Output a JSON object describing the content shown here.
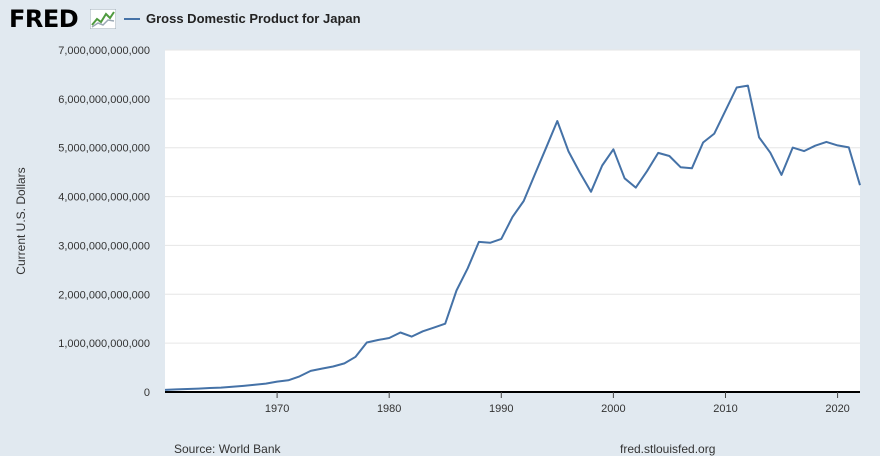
{
  "header": {
    "logo_text": "FRED",
    "logo_icon": "line-graph-icon"
  },
  "legend": {
    "label": "Gross Domestic Product for Japan",
    "color": "#4572a7"
  },
  "footer": {
    "source": "Source: World Bank",
    "site": "fred.stlouisfed.org"
  },
  "colors": {
    "background": "#e1e9f0",
    "plot_background": "#ffffff",
    "series": "#4572a7",
    "grid": "#e6e6e6",
    "axis_text": "#333333"
  },
  "chart_data": {
    "type": "line",
    "title": "Gross Domestic Product for Japan",
    "xlabel": "",
    "ylabel": "Current U.S. Dollars",
    "xlim": [
      1960,
      2022
    ],
    "ylim": [
      0,
      7000000000000
    ],
    "x_ticks": [
      1970,
      1980,
      1990,
      2000,
      2010,
      2020
    ],
    "y_ticks": [
      0,
      1000000000000,
      2000000000000,
      3000000000000,
      4000000000000,
      5000000000000,
      6000000000000,
      7000000000000
    ],
    "y_tick_labels": [
      "0",
      "1,000,000,000,000",
      "2,000,000,000,000",
      "3,000,000,000,000",
      "4,000,000,000,000",
      "5,000,000,000,000",
      "6,000,000,000,000",
      "7,000,000,000,000"
    ],
    "grid": true,
    "series": [
      {
        "name": "Gross Domestic Product for Japan",
        "x": [
          1960,
          1961,
          1962,
          1963,
          1964,
          1965,
          1966,
          1967,
          1968,
          1969,
          1970,
          1971,
          1972,
          1973,
          1974,
          1975,
          1976,
          1977,
          1978,
          1979,
          1980,
          1981,
          1982,
          1983,
          1984,
          1985,
          1986,
          1987,
          1988,
          1989,
          1990,
          1991,
          1992,
          1993,
          1994,
          1995,
          1996,
          1997,
          1998,
          1999,
          2000,
          2001,
          2002,
          2003,
          2004,
          2005,
          2006,
          2007,
          2008,
          2009,
          2010,
          2011,
          2012,
          2013,
          2014,
          2015,
          2016,
          2017,
          2018,
          2019,
          2020,
          2021,
          2022
        ],
        "values": [
          44000000000,
          53000000000,
          61000000000,
          69000000000,
          82000000000,
          91000000000,
          106000000000,
          124000000000,
          147000000000,
          172000000000,
          213000000000,
          240000000000,
          319000000000,
          432000000000,
          479000000000,
          521000000000,
          586000000000,
          721000000000,
          1014000000000,
          1065000000000,
          1105000000000,
          1218000000000,
          1134000000000,
          1243000000000,
          1318000000000,
          1398000000000,
          2078000000000,
          2532000000000,
          3072000000000,
          3054000000000,
          3133000000000,
          3584000000000,
          3909000000000,
          4455000000000,
          4998000000000,
          5546000000000,
          4924000000000,
          4493000000000,
          4098000000000,
          4636000000000,
          4968000000000,
          4374000000000,
          4183000000000,
          4519000000000,
          4894000000000,
          4831000000000,
          4601000000000,
          4579000000000,
          5106000000000,
          5289000000000,
          5759000000000,
          6233000000000,
          6272000000000,
          5212000000000,
          4897000000000,
          4444000000000,
          5003000000000,
          4930000000000,
          5041000000000,
          5118000000000,
          5048000000000,
          5006000000000,
          4232000000000
        ]
      }
    ]
  }
}
